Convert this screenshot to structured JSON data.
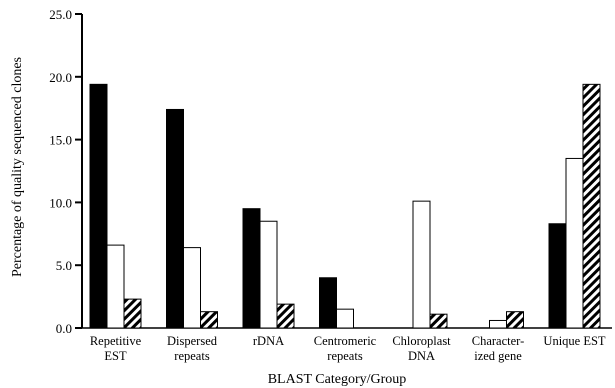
{
  "chart_data": {
    "type": "bar",
    "xlabel": "BLAST Category/Group",
    "ylabel": "Percentage of quality sequenced clones",
    "ylim": [
      0,
      25
    ],
    "yticks": [
      0,
      5,
      10,
      15,
      20,
      25
    ],
    "ytick_labels": [
      "0.0",
      "5.0",
      "10.0",
      "15.0",
      "20.0",
      "25.0"
    ],
    "grid": false,
    "legend": "none",
    "categories": [
      [
        "Repetitive",
        "EST"
      ],
      [
        "Dispersed",
        "repeats"
      ],
      [
        "rDNA"
      ],
      [
        "Centromeric",
        "repeats"
      ],
      [
        "Chloroplast",
        "DNA"
      ],
      [
        "Character-",
        "ized gene"
      ],
      [
        "Unique EST"
      ]
    ],
    "series": [
      {
        "fill": "#000000",
        "values": [
          19.4,
          17.4,
          9.5,
          4.0,
          0.0,
          0.0,
          8.3
        ]
      },
      {
        "fill": "#ffffff",
        "values": [
          6.6,
          6.4,
          8.5,
          1.5,
          10.1,
          0.6,
          13.5
        ]
      },
      {
        "fill": "hatch",
        "values": [
          2.3,
          1.3,
          1.9,
          0.0,
          1.1,
          1.3,
          19.4
        ]
      }
    ]
  }
}
